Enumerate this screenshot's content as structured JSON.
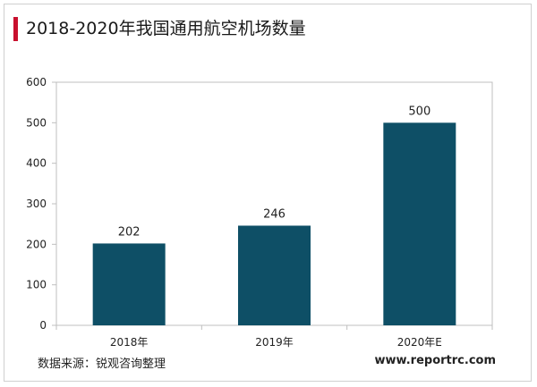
{
  "title": "2018-2020年我国通用航空机场数量",
  "source": "数据来源：锐观咨询整理",
  "website": "www.reportrc.com",
  "colors": {
    "accent": "#c8102e",
    "bar": "#0e4f66",
    "frame": "#cfcfcf"
  },
  "chart_data": {
    "type": "bar",
    "categories": [
      "2018年",
      "2019年",
      "2020年E"
    ],
    "values": [
      202,
      246,
      500
    ],
    "data_labels": [
      "202",
      "246",
      "500"
    ],
    "ylim": [
      0,
      600
    ],
    "yticks": [
      0,
      100,
      200,
      300,
      400,
      500,
      600
    ],
    "grid": false,
    "legend": "none"
  }
}
